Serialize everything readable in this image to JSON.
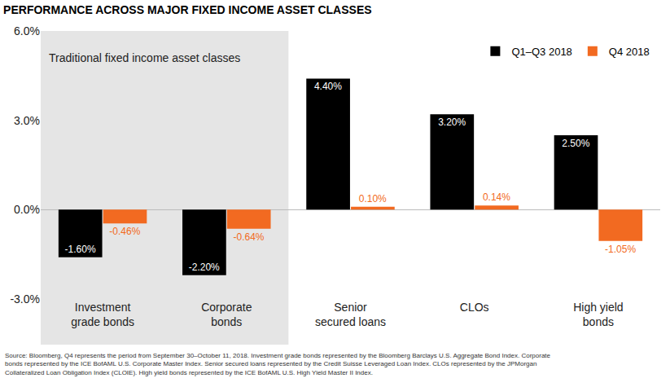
{
  "chart_data": {
    "type": "bar",
    "title": "PERFORMANCE ACROSS MAJOR FIXED INCOME ASSET CLASSES",
    "categories": [
      "Investment\ngrade bonds",
      "Corporate\nbonds",
      "Senior\nsecured loans",
      "CLOs",
      "High yield\nbonds"
    ],
    "series": [
      {
        "name": "Q1–Q3 2018",
        "color": "#000000",
        "values": [
          -1.6,
          -2.2,
          4.4,
          3.2,
          2.5
        ],
        "value_labels": [
          "-1.60%",
          "-2.20%",
          "4.40%",
          "3.20%",
          "2.50%"
        ]
      },
      {
        "name": "Q4 2018",
        "color": "#f26a21",
        "values": [
          -0.46,
          -0.64,
          0.1,
          0.14,
          -1.05
        ],
        "value_labels": [
          "-0.46%",
          "-0.64%",
          "0.10%",
          "0.14%",
          "-1.05%"
        ]
      }
    ],
    "ylim": [
      -3,
      6
    ],
    "yticks": [
      {
        "value": -3,
        "label": "-3.0%"
      },
      {
        "value": 0,
        "label": "0.0%"
      },
      {
        "value": 3,
        "label": "3.0%"
      },
      {
        "value": 6,
        "label": "6.0%"
      }
    ],
    "grid": false,
    "legend": "upper right",
    "data_labels": true,
    "annotations": [
      "Traditional fixed income asset classes"
    ],
    "notes": [
      "Source: Bloomberg, Q4 represents the period from September 30–October 11, 2018. Investment grade bonds represented by the Bloomberg Barclays U.S. Aggregate Bond Index. Corporate",
      "bonds represented by the ICE BofAML U.S. Corporate Master Index. Senior secured loans represented by the Credit Suisse Leveraged Loan Index. CLOs represented by the JPMorgan",
      "Collateralized Loan Obligation Index (CLOIE). High yield bonds represented by the ICE BofAML U.S. High Yield Master II Index."
    ]
  }
}
